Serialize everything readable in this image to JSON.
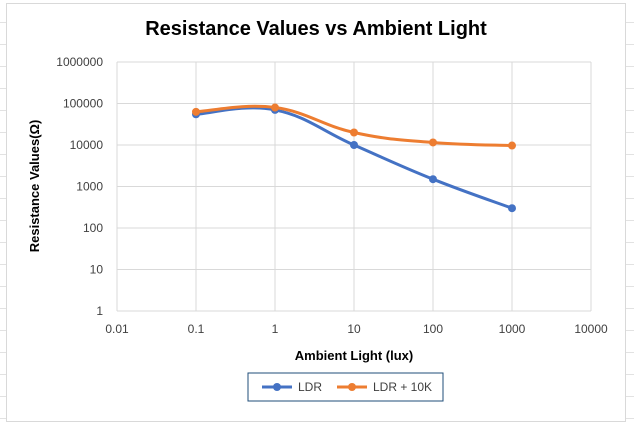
{
  "chart_data": {
    "type": "scatter",
    "title": "Resistance Values vs Ambient Light",
    "xlabel": "Ambient Light (lux)",
    "ylabel": "Resistance Values(Ω)",
    "x_scale": "log",
    "y_scale": "log",
    "xlim": [
      0.01,
      10000
    ],
    "ylim": [
      1,
      1000000
    ],
    "x_ticks": [
      "0.01",
      "0.1",
      "1",
      "10",
      "100",
      "1000",
      "10000"
    ],
    "y_ticks": [
      "1",
      "10",
      "100",
      "1000",
      "10000",
      "100000",
      "1000000"
    ],
    "grid": true,
    "legend_position": "bottom",
    "series": [
      {
        "name": "LDR",
        "color": "#4472C4",
        "x": [
          0.1,
          1,
          10,
          100,
          1000
        ],
        "y": [
          55000,
          70000,
          10000,
          1500,
          300
        ]
      },
      {
        "name": "LDR + 10K",
        "color": "#ED7D31",
        "x": [
          0.1,
          1,
          10,
          100,
          1000
        ],
        "y": [
          63000,
          80000,
          20000,
          11500,
          9700
        ]
      }
    ]
  }
}
